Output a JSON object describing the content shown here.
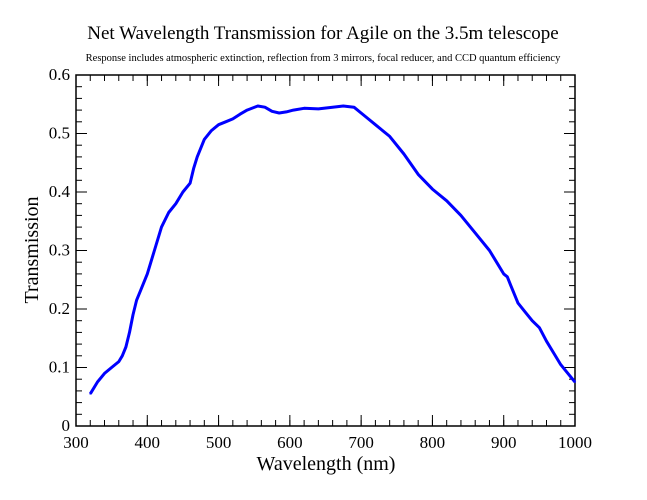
{
  "chart_data": {
    "type": "line",
    "title": "Net Wavelength Transmission for Agile on the 3.5m telescope",
    "subtitle": "Response includes atmospheric extinction, reflection from 3 mirrors, focal reducer, and CCD quantum efficiency",
    "xlabel": "Wavelength (nm)",
    "ylabel": "Transmission",
    "xlim": [
      300,
      1000
    ],
    "ylim": [
      0,
      0.6
    ],
    "x_ticks": [
      "300",
      "400",
      "500",
      "600",
      "700",
      "800",
      "900",
      "1000"
    ],
    "y_ticks": [
      "0",
      "0.1",
      "0.2",
      "0.3",
      "0.4",
      "0.5",
      "0.6"
    ],
    "x_minor_step": 20,
    "y_minor_step": 0.02,
    "grid": false,
    "series": [
      {
        "color": "#0000ff",
        "x": [
          320,
          330,
          340,
          350,
          360,
          365,
          370,
          375,
          380,
          385,
          390,
          400,
          410,
          420,
          430,
          440,
          450,
          460,
          465,
          470,
          480,
          490,
          500,
          510,
          520,
          530,
          540,
          555,
          565,
          575,
          585,
          595,
          605,
          620,
          640,
          660,
          675,
          690,
          700,
          710,
          720,
          740,
          760,
          780,
          800,
          820,
          840,
          860,
          880,
          890,
          900,
          905,
          910,
          920,
          930,
          940,
          950,
          960,
          970,
          980,
          990,
          1000
        ],
        "y": [
          0.055,
          0.075,
          0.09,
          0.1,
          0.11,
          0.12,
          0.135,
          0.16,
          0.19,
          0.215,
          0.23,
          0.26,
          0.3,
          0.34,
          0.365,
          0.38,
          0.4,
          0.415,
          0.44,
          0.46,
          0.49,
          0.505,
          0.515,
          0.52,
          0.525,
          0.533,
          0.54,
          0.547,
          0.545,
          0.538,
          0.535,
          0.537,
          0.54,
          0.543,
          0.542,
          0.545,
          0.547,
          0.545,
          0.535,
          0.525,
          0.515,
          0.495,
          0.465,
          0.43,
          0.405,
          0.385,
          0.36,
          0.33,
          0.3,
          0.28,
          0.26,
          0.255,
          0.24,
          0.21,
          0.195,
          0.18,
          0.168,
          0.145,
          0.125,
          0.105,
          0.09,
          0.075
        ]
      }
    ]
  }
}
